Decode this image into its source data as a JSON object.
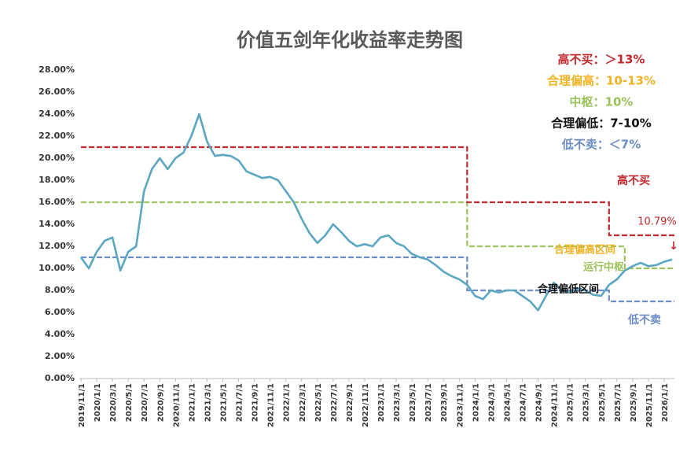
{
  "chart_data": {
    "type": "line",
    "title": "价值五剑年化收益率走势图",
    "categories": [
      "2019/11/1",
      null,
      "2020/1/1",
      null,
      "2020/3/1",
      null,
      "2020/5/1",
      null,
      "2020/7/1",
      null,
      "2020/9/1",
      null,
      "2020/11/1",
      null,
      "2021/1/1",
      null,
      "2021/3/1",
      null,
      "2021/5/1",
      null,
      "2021/7/1",
      null,
      "2021/9/1",
      null,
      "2021/11/1",
      null,
      "2022/1/1",
      null,
      "2022/3/1",
      null,
      "2022/5/1",
      null,
      "2022/7/1",
      null,
      "2022/9/1",
      null,
      "2022/11/1",
      null,
      "2023/1/1",
      null,
      "2023/3/1",
      null,
      "2023/5/1",
      null,
      "2023/7/1",
      null,
      "2023/9/1",
      null,
      "2023/11/1",
      null,
      "2024/1/1",
      null,
      "2024/3/1",
      null,
      "2024/5/1",
      null,
      "2024/7/1",
      null,
      "2024/9/1",
      null,
      "2024/11/1",
      null,
      "2025/1/1",
      null,
      "2025/3/1",
      null,
      "2025/5/1",
      null,
      "2025/7/1",
      null,
      "2025/9/1",
      null,
      "2025/11/1",
      null,
      "2026/1/1",
      null
    ],
    "series": [
      {
        "color": "#5ba7c2",
        "style": "line",
        "values": [
          11.0,
          10.0,
          11.5,
          12.5,
          12.8,
          9.8,
          11.5,
          12.0,
          17.0,
          19.0,
          20.0,
          19.0,
          20.0,
          20.5,
          22.0,
          24.0,
          21.5,
          20.2,
          20.3,
          20.2,
          19.8,
          18.8,
          18.5,
          18.2,
          18.3,
          18.0,
          17.0,
          16.0,
          14.5,
          13.2,
          12.3,
          13.0,
          14.0,
          13.3,
          12.5,
          12.0,
          12.2,
          12.0,
          12.8,
          13.0,
          12.3,
          12.0,
          11.3,
          11.0,
          10.8,
          10.3,
          9.7,
          9.3,
          9.0,
          8.5,
          7.5,
          7.2,
          8.0,
          7.8,
          8.0,
          8.0,
          7.5,
          7.0,
          6.2,
          7.5,
          8.7,
          8.0,
          7.8,
          8.2,
          8.0,
          7.6,
          7.5,
          8.5,
          9.0,
          9.8,
          10.2,
          10.5,
          10.2,
          10.3,
          10.6,
          10.8
        ]
      },
      {
        "color": "#c0282d",
        "style": "step-dashed",
        "values": [
          21,
          21,
          21,
          21,
          21,
          21,
          21,
          21,
          21,
          21,
          21,
          21,
          21,
          21,
          21,
          21,
          21,
          21,
          21,
          21,
          21,
          21,
          21,
          21,
          21,
          21,
          21,
          21,
          21,
          21,
          21,
          21,
          21,
          21,
          21,
          21,
          21,
          21,
          21,
          21,
          21,
          21,
          21,
          21,
          21,
          21,
          21,
          21,
          21,
          16,
          16,
          16,
          16,
          16,
          16,
          16,
          16,
          16,
          16,
          16,
          16,
          16,
          16,
          16,
          16,
          16,
          16,
          13,
          13,
          13,
          13,
          13,
          13,
          13,
          13,
          13
        ]
      },
      {
        "color": "#9bc25b",
        "style": "step-dashed",
        "values": [
          16,
          16,
          16,
          16,
          16,
          16,
          16,
          16,
          16,
          16,
          16,
          16,
          16,
          16,
          16,
          16,
          16,
          16,
          16,
          16,
          16,
          16,
          16,
          16,
          16,
          16,
          16,
          16,
          16,
          16,
          16,
          16,
          16,
          16,
          16,
          16,
          16,
          16,
          16,
          16,
          16,
          16,
          16,
          16,
          16,
          16,
          16,
          16,
          16,
          12,
          12,
          12,
          12,
          12,
          12,
          12,
          12,
          12,
          12,
          12,
          12,
          12,
          12,
          12,
          12,
          12,
          12,
          12,
          12,
          10,
          10,
          10,
          10,
          10,
          10,
          10
        ]
      },
      {
        "color": "#6b8cc4",
        "style": "step-dashed",
        "values": [
          11,
          11,
          11,
          11,
          11,
          11,
          11,
          11,
          11,
          11,
          11,
          11,
          11,
          11,
          11,
          11,
          11,
          11,
          11,
          11,
          11,
          11,
          11,
          11,
          11,
          11,
          11,
          11,
          11,
          11,
          11,
          11,
          11,
          11,
          11,
          11,
          11,
          11,
          11,
          11,
          11,
          11,
          11,
          11,
          11,
          11,
          11,
          11,
          11,
          8,
          8,
          8,
          8,
          8,
          8,
          8,
          8,
          8,
          8,
          8,
          8,
          8,
          8,
          8,
          8,
          8,
          8,
          7,
          7,
          7,
          7,
          7,
          7,
          7,
          7,
          7
        ]
      }
    ],
    "ylim": [
      0,
      28
    ],
    "yticks": [
      {
        "value": 0,
        "label": "0.00%"
      },
      {
        "value": 2,
        "label": "2.00%"
      },
      {
        "value": 4,
        "label": "4.00%"
      },
      {
        "value": 6,
        "label": "6.00%"
      },
      {
        "value": 8,
        "label": "8.00%"
      },
      {
        "value": 10,
        "label": "10.00%"
      },
      {
        "value": 12,
        "label": "12.00%"
      },
      {
        "value": 14,
        "label": "14.00%"
      },
      {
        "value": 16,
        "label": "16.00%"
      },
      {
        "value": 18,
        "label": "18.00%"
      },
      {
        "value": 20,
        "label": "20.00%"
      },
      {
        "value": 22,
        "label": "22.00%"
      },
      {
        "value": 24,
        "label": "24.00%"
      },
      {
        "value": 26,
        "label": "26.00%"
      },
      {
        "value": 28,
        "label": "28.00%"
      }
    ],
    "grid": false,
    "legend_notes": [
      {
        "text": "高不买：＞13%",
        "color": "#c0282d"
      },
      {
        "text": "合理偏高：10-13%",
        "color": "#f0b323"
      },
      {
        "text": "中枢：10%",
        "color": "#9bc25b"
      },
      {
        "text": "合理偏低：7-10%",
        "color": "#111111"
      },
      {
        "text": "低不卖：＜7%",
        "color": "#6b8cc4"
      }
    ],
    "annotations": [
      {
        "text": "高不买",
        "color": "#c0282d"
      },
      {
        "text": "10.79%",
        "color": "#c0282d"
      },
      {
        "text": "↓",
        "color": "#c0282d"
      },
      {
        "text": "合理偏高区间",
        "color": "#f0b323"
      },
      {
        "text": "运行中枢",
        "color": "#9bc25b"
      },
      {
        "text": "合理偏低区间",
        "color": "#111111"
      },
      {
        "text": "低不卖",
        "color": "#6b8cc4"
      }
    ]
  }
}
